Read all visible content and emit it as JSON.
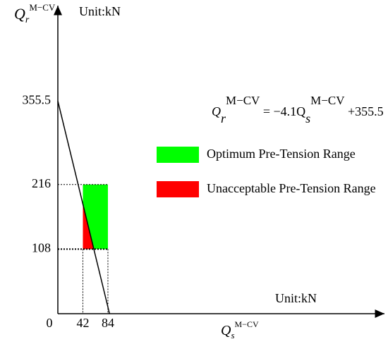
{
  "chart_data": {
    "type": "line",
    "y_label": {
      "base": "Q",
      "sub": "r",
      "sup": "M−CV"
    },
    "x_label": {
      "base": "Q",
      "sub": "s",
      "sup": "M−CV"
    },
    "y_unit": "Unit:kN",
    "x_unit": "Unit:kN",
    "equation": {
      "lhs": "Q",
      "lhs_sub": "r",
      "lhs_sup": "M−CV",
      "mid": " = −4.1Q",
      "mid_sub": "s",
      "mid_sup": "M−CV",
      "rhs": " +355.5"
    },
    "xlim": [
      0,
      548
    ],
    "ylim": [
      0,
      515
    ],
    "xticks": [
      0,
      42,
      84
    ],
    "yticks": [
      108,
      216,
      355.5
    ],
    "series": [
      {
        "color": "#000000",
        "x": [
          0,
          86.7
        ],
        "values": [
          355.5,
          0
        ]
      }
    ],
    "regions": [
      {
        "name": "Optimum Pre-Tension Range",
        "color": "#00ff00",
        "x": [
          42,
          84,
          84,
          42
        ],
        "y": [
          108,
          108,
          216,
          216
        ]
      },
      {
        "name": "Unacceptable Pre-Tension Range",
        "color": "#ff0000",
        "x": [
          42,
          42,
          60.4
        ],
        "y": [
          108,
          183.3,
          108
        ]
      }
    ]
  }
}
